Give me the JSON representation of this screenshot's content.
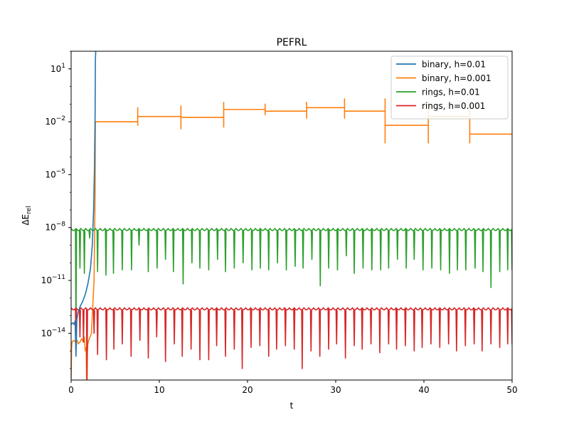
{
  "chart_data": {
    "type": "line",
    "title": "PEFRL",
    "xlabel": "t",
    "ylabel": "ΔE_rel",
    "xlim": [
      0,
      50
    ],
    "ylim": [
      -16.65,
      2.0
    ],
    "y_scale": "log10",
    "grid": false,
    "legend_position": "top-right",
    "x_ticks": [
      0,
      10,
      20,
      30,
      40,
      50
    ],
    "y_ticks": [
      {
        "exp": 1,
        "label": "10",
        "sup": "1"
      },
      {
        "exp": -2,
        "label": "10",
        "sup": "−2"
      },
      {
        "exp": -5,
        "label": "10",
        "sup": "−5"
      },
      {
        "exp": -8,
        "label": "10",
        "sup": "−8"
      },
      {
        "exp": -11,
        "label": "10",
        "sup": "−11"
      },
      {
        "exp": -14,
        "label": "10",
        "sup": "−14"
      }
    ],
    "series": [
      {
        "name": "binary, h=0.01",
        "color": "#1f77b4",
        "x": [
          0.0,
          0.2,
          0.35,
          0.45,
          0.55,
          0.65,
          0.8,
          1.0,
          1.3,
          1.6,
          1.9,
          2.2,
          2.4,
          2.55,
          2.65,
          2.72,
          2.75,
          2.8,
          50
        ],
        "log10_y": [
          -13.5,
          -13.4,
          -13.5,
          -13.3,
          -15.3,
          -13.2,
          -12.8,
          -12.5,
          -12.2,
          -11.8,
          -11.2,
          -10.3,
          -9.0,
          -7.0,
          -4.5,
          -1.5,
          1.5,
          2.1,
          2.1
        ]
      },
      {
        "name": "binary, h=0.001",
        "color": "#ff7f0e",
        "x": [
          0.0,
          0.05,
          0.1,
          0.3,
          0.5,
          0.7,
          0.8,
          1.0,
          1.2,
          1.4,
          1.5,
          1.6,
          1.7,
          1.75,
          1.8,
          1.85,
          1.9,
          2.0,
          2.3,
          2.6,
          2.72,
          2.75,
          2.8,
          7.55,
          7.55,
          7.55,
          7.55,
          12.45,
          12.45,
          12.45,
          12.45,
          17.3,
          17.3,
          17.3,
          17.3,
          22.0,
          22.0,
          22.0,
          22.0,
          26.7,
          26.7,
          26.7,
          26.7,
          31.0,
          31.0,
          31.0,
          31.0,
          35.6,
          35.6,
          35.6,
          35.6,
          40.5,
          40.5,
          40.5,
          40.5,
          45.2,
          45.2,
          45.2,
          45.2,
          50
        ],
        "log10_y": [
          -16.6,
          -14.8,
          -14.5,
          -14.4,
          -14.5,
          -14.4,
          -14.6,
          -14.5,
          -14.3,
          -14.5,
          -14.2,
          -15.0,
          -14.8,
          -16.6,
          -16.6,
          -15.0,
          -14.6,
          -14.4,
          -14.0,
          -11.0,
          -6.0,
          -2.0,
          -2.0,
          -2.0,
          -1.2,
          -2.2,
          -1.7,
          -1.7,
          -1.1,
          -2.4,
          -1.75,
          -1.75,
          -0.9,
          -2.3,
          -1.3,
          -1.3,
          -1.0,
          -1.6,
          -1.4,
          -1.4,
          -0.9,
          -1.8,
          -1.2,
          -1.2,
          -0.7,
          -1.8,
          -1.4,
          -1.4,
          -0.7,
          -3.2,
          -2.2,
          -2.2,
          -0.9,
          -3.2,
          -1.7,
          -1.7,
          -1.0,
          -3.2,
          -2.7,
          -2.7
        ]
      },
      {
        "name": "rings, h=0.01",
        "color": "#2ca02c",
        "baseline_log10": -8.05,
        "ripple_amplitude": 0.12,
        "ripple_period": 0.55,
        "dips": [
          {
            "x": 0.55,
            "log10_y": -13.8
          },
          {
            "x": 1.0,
            "log10_y": -10.3
          },
          {
            "x": 1.5,
            "log10_y": -10.6
          },
          {
            "x": 2.1,
            "log10_y": -8.6
          },
          {
            "x": 3.0,
            "log10_y": -10.5
          },
          {
            "x": 3.95,
            "log10_y": -10.7
          },
          {
            "x": 4.8,
            "log10_y": -10.6
          },
          {
            "x": 5.8,
            "log10_y": -10.4
          },
          {
            "x": 6.85,
            "log10_y": -10.4
          },
          {
            "x": 7.7,
            "log10_y": -9.0
          },
          {
            "x": 8.75,
            "log10_y": -10.5
          },
          {
            "x": 9.75,
            "log10_y": -10.3
          },
          {
            "x": 10.7,
            "log10_y": -9.8
          },
          {
            "x": 11.6,
            "log10_y": -10.5
          },
          {
            "x": 12.7,
            "log10_y": -11.2
          },
          {
            "x": 13.7,
            "log10_y": -10.0
          },
          {
            "x": 14.6,
            "log10_y": -10.3
          },
          {
            "x": 15.6,
            "log10_y": -10.4
          },
          {
            "x": 16.6,
            "log10_y": -9.8
          },
          {
            "x": 17.5,
            "log10_y": -10.5
          },
          {
            "x": 18.5,
            "log10_y": -10.3
          },
          {
            "x": 19.5,
            "log10_y": -10.0
          },
          {
            "x": 20.5,
            "log10_y": -10.4
          },
          {
            "x": 21.45,
            "log10_y": -10.3
          },
          {
            "x": 22.4,
            "log10_y": -10.4
          },
          {
            "x": 23.4,
            "log10_y": -10.0
          },
          {
            "x": 24.4,
            "log10_y": -10.4
          },
          {
            "x": 25.4,
            "log10_y": -10.2
          },
          {
            "x": 26.3,
            "log10_y": -10.3
          },
          {
            "x": 27.3,
            "log10_y": -9.8
          },
          {
            "x": 28.25,
            "log10_y": -11.3
          },
          {
            "x": 29.2,
            "log10_y": -10.3
          },
          {
            "x": 30.2,
            "log10_y": -10.4
          },
          {
            "x": 31.2,
            "log10_y": -9.6
          },
          {
            "x": 32.1,
            "log10_y": -10.6
          },
          {
            "x": 33.1,
            "log10_y": -10.3
          },
          {
            "x": 34.1,
            "log10_y": -10.4
          },
          {
            "x": 35.1,
            "log10_y": -10.4
          },
          {
            "x": 36.0,
            "log10_y": -10.3
          },
          {
            "x": 37.0,
            "log10_y": -9.8
          },
          {
            "x": 38.0,
            "log10_y": -10.3
          },
          {
            "x": 38.9,
            "log10_y": -9.8
          },
          {
            "x": 39.9,
            "log10_y": -10.4
          },
          {
            "x": 40.9,
            "log10_y": -10.3
          },
          {
            "x": 41.9,
            "log10_y": -10.4
          },
          {
            "x": 42.9,
            "log10_y": -10.6
          },
          {
            "x": 43.8,
            "log10_y": -10.4
          },
          {
            "x": 44.75,
            "log10_y": -10.4
          },
          {
            "x": 45.8,
            "log10_y": -10.3
          },
          {
            "x": 46.7,
            "log10_y": -10.5
          },
          {
            "x": 47.6,
            "log10_y": -11.4
          },
          {
            "x": 48.6,
            "log10_y": -10.5
          },
          {
            "x": 49.5,
            "log10_y": -10.4
          },
          {
            "x": 50.0,
            "log10_y": -10.4
          }
        ]
      },
      {
        "name": "rings, h=0.001",
        "color": "#d62728",
        "baseline_log10": -12.55,
        "ripple_amplitude": 0.12,
        "ripple_period": 0.55,
        "dips": [
          {
            "x": 0.55,
            "log10_y": -14.2
          },
          {
            "x": 1.0,
            "log10_y": -14.2
          },
          {
            "x": 1.4,
            "log10_y": -14.5
          },
          {
            "x": 1.8,
            "log10_y": -16.6
          },
          {
            "x": 2.6,
            "log10_y": -14.0
          },
          {
            "x": 3.0,
            "log10_y": -15.2
          },
          {
            "x": 4.0,
            "log10_y": -15.5
          },
          {
            "x": 4.85,
            "log10_y": -14.9
          },
          {
            "x": 5.8,
            "log10_y": -14.6
          },
          {
            "x": 6.8,
            "log10_y": -15.3
          },
          {
            "x": 7.8,
            "log10_y": -14.4
          },
          {
            "x": 8.75,
            "log10_y": -15.4
          },
          {
            "x": 9.7,
            "log10_y": -14.2
          },
          {
            "x": 10.7,
            "log10_y": -15.6
          },
          {
            "x": 11.7,
            "log10_y": -14.6
          },
          {
            "x": 12.6,
            "log10_y": -15.3
          },
          {
            "x": 13.6,
            "log10_y": -14.9
          },
          {
            "x": 14.6,
            "log10_y": -15.5
          },
          {
            "x": 15.6,
            "log10_y": -15.5
          },
          {
            "x": 16.5,
            "log10_y": -14.7
          },
          {
            "x": 17.5,
            "log10_y": -15.3
          },
          {
            "x": 18.5,
            "log10_y": -14.9
          },
          {
            "x": 19.4,
            "log10_y": -16.0
          },
          {
            "x": 20.4,
            "log10_y": -14.8
          },
          {
            "x": 21.4,
            "log10_y": -14.7
          },
          {
            "x": 22.4,
            "log10_y": -15.3
          },
          {
            "x": 23.3,
            "log10_y": -14.9
          },
          {
            "x": 24.3,
            "log10_y": -14.7
          },
          {
            "x": 25.3,
            "log10_y": -14.9
          },
          {
            "x": 26.2,
            "log10_y": -16.0
          },
          {
            "x": 27.2,
            "log10_y": -15.0
          },
          {
            "x": 28.2,
            "log10_y": -15.3
          },
          {
            "x": 29.2,
            "log10_y": -14.9
          },
          {
            "x": 30.1,
            "log10_y": -14.6
          },
          {
            "x": 31.1,
            "log10_y": -15.4
          },
          {
            "x": 32.1,
            "log10_y": -14.7
          },
          {
            "x": 33.0,
            "log10_y": -14.9
          },
          {
            "x": 34.0,
            "log10_y": -14.6
          },
          {
            "x": 35.0,
            "log10_y": -15.1
          },
          {
            "x": 36.0,
            "log10_y": -14.6
          },
          {
            "x": 36.9,
            "log10_y": -14.9
          },
          {
            "x": 37.9,
            "log10_y": -14.7
          },
          {
            "x": 38.9,
            "log10_y": -15.0
          },
          {
            "x": 39.8,
            "log10_y": -14.8
          },
          {
            "x": 40.8,
            "log10_y": -14.6
          },
          {
            "x": 41.8,
            "log10_y": -14.8
          },
          {
            "x": 42.8,
            "log10_y": -14.6
          },
          {
            "x": 43.7,
            "log10_y": -15.0
          },
          {
            "x": 44.7,
            "log10_y": -14.7
          },
          {
            "x": 45.7,
            "log10_y": -14.6
          },
          {
            "x": 46.6,
            "log10_y": -15.0
          },
          {
            "x": 47.6,
            "log10_y": -14.6
          },
          {
            "x": 48.6,
            "log10_y": -14.8
          },
          {
            "x": 49.5,
            "log10_y": -14.6
          },
          {
            "x": 50.0,
            "log10_y": -14.6
          }
        ]
      }
    ]
  }
}
